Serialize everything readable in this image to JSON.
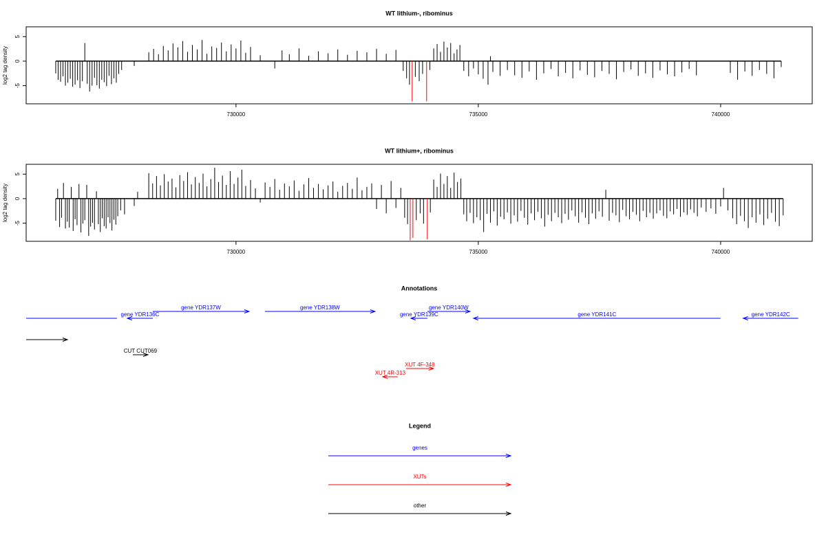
{
  "chart_data": [
    {
      "type": "spike",
      "title": "WT lithium-, ribominus",
      "ylabel": "log2 tag density",
      "xlim": [
        725670,
        741890
      ],
      "ylim": [
        -8.7,
        7.0
      ],
      "xticks": [
        730000,
        735000,
        740000
      ],
      "yticks": [
        -5,
        0,
        5
      ],
      "series": [
        {
          "color": "#000000",
          "x": [
            726280,
            726330,
            726380,
            726430,
            726480,
            726530,
            726580,
            726630,
            726680,
            726730,
            726780,
            726830,
            726880,
            726930,
            726980,
            727030,
            727080,
            727130,
            727180,
            727230,
            727280,
            727330,
            727380,
            727430,
            727480,
            727530,
            727580,
            727640,
            727900,
            728200,
            728300,
            728400,
            728500,
            728600,
            728700,
            728800,
            728900,
            729000,
            729100,
            729200,
            729300,
            729400,
            729500,
            729600,
            729700,
            729800,
            729900,
            730000,
            730100,
            730200,
            730300,
            730500,
            730800,
            730950,
            731100,
            731300,
            731500,
            731700,
            731900,
            732100,
            732300,
            732500,
            732700,
            732900,
            733100,
            733300,
            733450,
            733520,
            733580,
            733700,
            733780,
            733850,
            734000,
            734080,
            734150,
            734220,
            734290,
            734360,
            734430,
            734500,
            734560,
            734620,
            734700,
            734800,
            734900,
            735000,
            735100,
            735200,
            735250,
            735300,
            735450,
            735600,
            735750,
            735900,
            736050,
            736200,
            736350,
            736500,
            736650,
            736800,
            736950,
            737100,
            737250,
            737400,
            737550,
            737700,
            737850,
            738000,
            738150,
            738300,
            738450,
            738600,
            738750,
            738900,
            739050,
            739200,
            739350,
            739500,
            740200,
            740350,
            740500,
            740650,
            740800,
            740950,
            741100,
            741250
          ],
          "values": [
            -2.5,
            -3.8,
            -4.2,
            -3.1,
            -5.0,
            -4.4,
            -3.6,
            -5.2,
            -4.8,
            -3.9,
            -5.5,
            -4.1,
            3.7,
            -4.6,
            -6.2,
            -5.0,
            -3.4,
            -4.9,
            -5.6,
            -3.8,
            -4.3,
            -5.1,
            -3.0,
            -4.7,
            -3.5,
            -4.4,
            -2.6,
            -1.8,
            -1.0,
            1.8,
            2.5,
            1.4,
            3.1,
            2.2,
            3.6,
            2.8,
            4.1,
            1.9,
            3.3,
            2.4,
            4.3,
            1.5,
            3.0,
            2.7,
            3.8,
            2.0,
            3.4,
            2.6,
            4.2,
            1.7,
            2.9,
            1.2,
            -1.5,
            2.2,
            1.4,
            2.6,
            1.1,
            2.0,
            1.6,
            2.4,
            1.3,
            2.1,
            1.8,
            2.5,
            1.5,
            2.3,
            -2.0,
            -3.5,
            -4.8,
            -3.2,
            -4.1,
            -2.6,
            -1.8,
            2.6,
            3.5,
            1.9,
            4.0,
            2.8,
            3.7,
            1.6,
            2.4,
            3.3,
            -2.0,
            -3.1,
            -1.5,
            -2.7,
            -3.6,
            -4.8,
            1.0,
            -2.2,
            -3.0,
            -1.8,
            -2.9,
            -3.4,
            -2.1,
            -3.8,
            -2.5,
            -1.6,
            -3.1,
            -2.4,
            -3.5,
            -1.9,
            -2.8,
            -3.3,
            -2.0,
            -2.6,
            -3.7,
            -2.2,
            -1.7,
            -3.0,
            -2.5,
            -3.4,
            -1.9,
            -2.7,
            -3.1,
            -2.3,
            -1.6,
            -2.9,
            -2.4,
            -3.8,
            -2.1,
            -3.0,
            -1.8,
            -2.6,
            -3.5,
            -1.2
          ]
        },
        {
          "color": "#ff0000",
          "x": [
            733635,
            733933
          ],
          "values": [
            -8.2,
            -8.2
          ]
        }
      ]
    },
    {
      "type": "spike",
      "title": "WT lithium+, ribominus",
      "ylabel": "log2 tag density",
      "xlim": [
        725670,
        741890
      ],
      "ylim": [
        -8.7,
        7.0
      ],
      "xticks": [
        730000,
        735000,
        740000
      ],
      "yticks": [
        -5,
        0,
        5
      ],
      "series": [
        {
          "color": "#000000",
          "x": [
            726280,
            726320,
            726360,
            726400,
            726440,
            726480,
            726520,
            726560,
            726600,
            726640,
            726680,
            726720,
            726760,
            726800,
            726840,
            726880,
            726920,
            726960,
            727000,
            727040,
            727080,
            727120,
            727160,
            727200,
            727240,
            727280,
            727320,
            727360,
            727400,
            727440,
            727480,
            727520,
            727560,
            727620,
            727700,
            727900,
            727970,
            728200,
            728280,
            728360,
            728440,
            728520,
            728600,
            728680,
            728760,
            728840,
            728920,
            729000,
            729080,
            729160,
            729240,
            729320,
            729400,
            729480,
            729560,
            729640,
            729720,
            729800,
            729880,
            729960,
            730040,
            730120,
            730200,
            730300,
            730400,
            730500,
            730600,
            730700,
            730800,
            730900,
            731000,
            731100,
            731200,
            731300,
            731400,
            731500,
            731600,
            731700,
            731800,
            731900,
            732000,
            732100,
            732200,
            732300,
            732400,
            732500,
            732600,
            732700,
            732800,
            732900,
            733000,
            733100,
            733200,
            733300,
            733400,
            733480,
            733540,
            733720,
            733800,
            733870,
            734010,
            734080,
            734150,
            734220,
            734290,
            734360,
            734430,
            734500,
            734570,
            734640,
            734700,
            734760,
            734830,
            734900,
            734970,
            735040,
            735110,
            735180,
            735250,
            735320,
            735390,
            735460,
            735530,
            735600,
            735670,
            735740,
            735810,
            735880,
            735950,
            736020,
            736090,
            736160,
            736230,
            736300,
            736370,
            736440,
            736510,
            736580,
            736650,
            736720,
            736790,
            736860,
            736930,
            737000,
            737070,
            737140,
            737210,
            737280,
            737350,
            737420,
            737490,
            737560,
            737630,
            737700,
            737770,
            737840,
            737910,
            737980,
            738050,
            738120,
            738190,
            738260,
            738330,
            738400,
            738470,
            738540,
            738610,
            738680,
            738750,
            738820,
            738890,
            738960,
            739030,
            739100,
            739170,
            739240,
            739310,
            739380,
            739450,
            739520,
            739600,
            739700,
            739800,
            739900,
            740000,
            740060,
            740150,
            740250,
            740330,
            740410,
            740490,
            740570,
            740650,
            740730,
            740810,
            740890,
            740970,
            741050,
            741130,
            741210,
            741290
          ],
          "values": [
            -4.5,
            2.0,
            -5.8,
            -3.9,
            3.2,
            -6.1,
            -4.7,
            -5.9,
            2.4,
            -6.6,
            -4.2,
            -5.4,
            3.0,
            -6.9,
            -5.1,
            -4.4,
            2.8,
            -7.6,
            -5.7,
            -4.9,
            -6.3,
            1.5,
            -5.2,
            -6.8,
            -4.0,
            -5.6,
            -6.1,
            -3.8,
            -5.0,
            -6.5,
            -4.3,
            -5.3,
            -3.6,
            -2.4,
            -3.2,
            -1.5,
            1.4,
            5.2,
            3.1,
            4.6,
            2.7,
            5.0,
            3.5,
            4.1,
            2.3,
            4.8,
            3.6,
            5.4,
            2.9,
            4.4,
            3.2,
            5.1,
            2.5,
            4.0,
            6.3,
            3.4,
            4.7,
            2.8,
            5.6,
            3.0,
            4.3,
            5.9,
            2.6,
            3.8,
            2.1,
            -0.8,
            3.3,
            2.4,
            4.0,
            1.8,
            3.1,
            2.5,
            3.7,
            1.6,
            2.9,
            4.2,
            2.2,
            3.0,
            1.9,
            2.7,
            3.5,
            1.4,
            2.6,
            3.2,
            2.0,
            4.3,
            1.7,
            2.4,
            3.1,
            -2.1,
            2.8,
            -3.0,
            3.6,
            -1.9,
            2.2,
            -3.9,
            -5.2,
            -4.4,
            -3.0,
            -5.1,
            -2.8,
            3.9,
            2.4,
            5.1,
            3.0,
            4.6,
            2.2,
            5.3,
            3.4,
            4.1,
            -3.2,
            -4.6,
            -2.9,
            -5.0,
            -3.8,
            -4.4,
            -6.8,
            -3.1,
            -4.9,
            -2.6,
            -5.5,
            -3.7,
            -4.2,
            -2.8,
            -5.1,
            -3.4,
            -4.7,
            -2.5,
            -3.9,
            -5.3,
            -3.0,
            -4.4,
            -2.7,
            -4.0,
            -5.7,
            -3.3,
            -4.6,
            -2.9,
            -3.8,
            -5.0,
            -3.1,
            -4.3,
            -2.4,
            -3.6,
            -4.9,
            -2.8,
            -3.9,
            -5.2,
            -3.0,
            -4.1,
            -2.6,
            -3.7,
            1.8,
            -4.5,
            -2.9,
            -3.4,
            -4.8,
            -2.3,
            -3.6,
            -4.2,
            -2.7,
            -3.3,
            -4.6,
            -2.5,
            -3.8,
            -2.9,
            -4.1,
            -3.0,
            -2.4,
            -3.5,
            -4.0,
            -2.6,
            -3.2,
            -2.1,
            -3.7,
            -2.8,
            -3.3,
            -2.2,
            -2.9,
            -3.6,
            -1.8,
            -2.7,
            -2.0,
            -3.1,
            -1.6,
            2.2,
            -2.4,
            -4.0,
            -5.2,
            -3.5,
            -4.6,
            -6.0,
            -3.8,
            -4.9,
            -3.2,
            -5.4,
            -4.1,
            -2.9,
            -4.7,
            -5.6,
            -3.4
          ]
        },
        {
          "color": "#ff0000",
          "x": [
            733594,
            733650,
            733947
          ],
          "values": [
            -8.5,
            -8.0,
            -8.3
          ]
        }
      ]
    },
    {
      "type": "annotation",
      "title": "Annotations",
      "xlim": [
        725670,
        741890
      ],
      "features": [
        {
          "label": null,
          "start": 725400,
          "end": 727544,
          "strand": "-",
          "color": "#0000ff"
        },
        {
          "label": "gene YDR136C",
          "start": 727757,
          "end": 728283,
          "strand": "-",
          "color": "#0000ff"
        },
        {
          "label": "gene YDR137W",
          "start": 728283,
          "end": 730271,
          "strand": "+",
          "color": "#0000ff"
        },
        {
          "label": "gene YDR138W",
          "start": 730597,
          "end": 732869,
          "strand": "+",
          "color": "#0000ff"
        },
        {
          "label": "gene YDR139C",
          "start": 733608,
          "end": 733949,
          "strand": "-",
          "color": "#0000ff"
        },
        {
          "label": "gene YDR140W",
          "start": 733949,
          "end": 734829,
          "strand": "+",
          "color": "#0000ff"
        },
        {
          "label": "gene YDR141C",
          "start": 734900,
          "end": 739998,
          "strand": "-",
          "color": "#0000ff"
        },
        {
          "label": "gene YDR142C",
          "start": 740466,
          "end": 741602,
          "strand": "-",
          "color": "#0000ff"
        },
        {
          "label": null,
          "start": 725400,
          "end": 726522,
          "strand": "+",
          "color": "#000000"
        },
        {
          "label": "CUT CUT069",
          "start": 727871,
          "end": 728183,
          "strand": "+",
          "color": "#000000"
        },
        {
          "label": "XUT 4F-348",
          "start": 733508,
          "end": 734076,
          "strand": "+",
          "color": "#ff0000"
        },
        {
          "label": "XUT 4R-313",
          "start": 733026,
          "end": 733338,
          "strand": "-",
          "color": "#ff0000"
        }
      ]
    }
  ],
  "legend": {
    "title": "Legend",
    "items": [
      {
        "label": "genes",
        "color": "#0000ff"
      },
      {
        "label": "XUTs",
        "color": "#ff0000"
      },
      {
        "label": "other",
        "color": "#000000"
      }
    ]
  }
}
